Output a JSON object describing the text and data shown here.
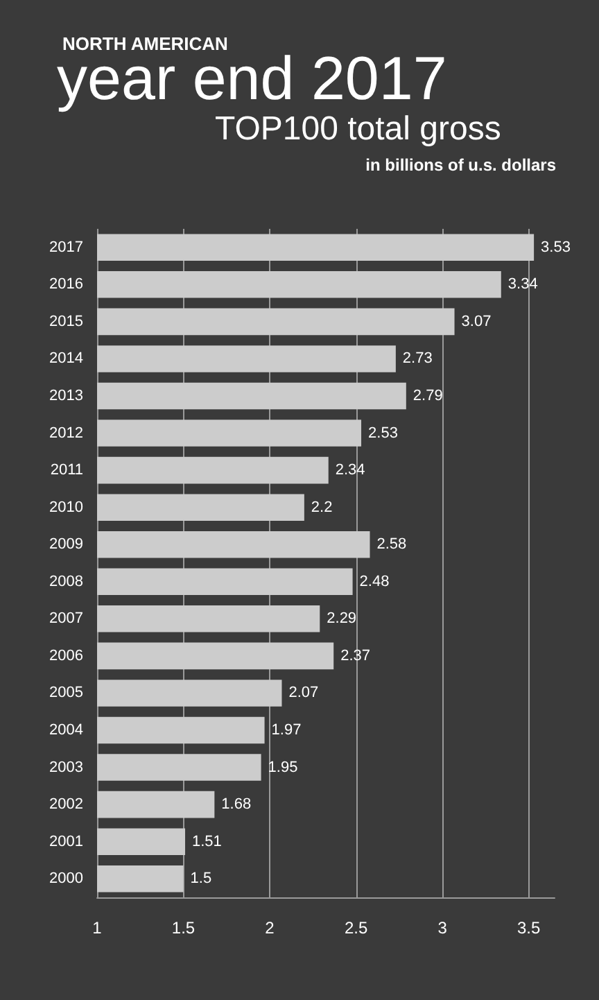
{
  "chart_data": {
    "type": "bar",
    "orientation": "horizontal",
    "title": "NORTH AMERICAN\nyear end 2017\nTOP100 total gross",
    "subtitle": "in billions of u.s. dollars",
    "categories": [
      "2017",
      "2016",
      "2015",
      "2014",
      "2013",
      "2012",
      "2011",
      "2010",
      "2009",
      "2008",
      "2007",
      "2006",
      "2005",
      "2004",
      "2003",
      "2002",
      "2001",
      "2000"
    ],
    "values": [
      3.53,
      3.34,
      3.07,
      2.73,
      2.79,
      2.53,
      2.34,
      2.2,
      2.58,
      2.48,
      2.29,
      2.37,
      2.07,
      1.97,
      1.95,
      1.68,
      1.51,
      1.5
    ],
    "color": "#cccccc",
    "xlim": [
      1,
      3.65
    ],
    "xticks": [
      1,
      1.5,
      2,
      2.5,
      3,
      3.5
    ],
    "grid": "x",
    "data_labels": true
  }
}
